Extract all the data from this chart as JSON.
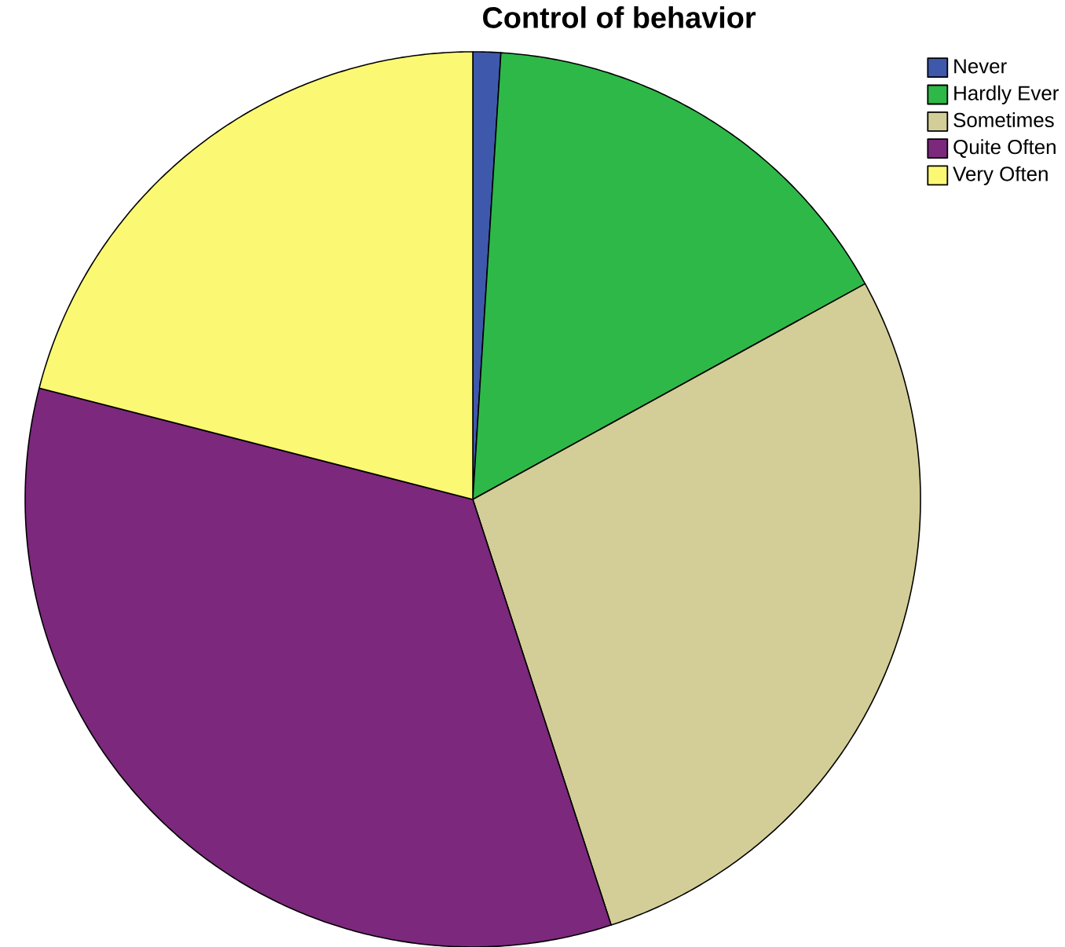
{
  "chart_data": {
    "type": "pie",
    "title": "Control of behavior",
    "categories": [
      "Never",
      "Hardly Ever",
      "Sometimes",
      "Quite Often",
      "Very Often"
    ],
    "values": [
      1,
      16,
      28,
      34,
      21
    ],
    "colors": [
      "#3e58ac",
      "#2eb848",
      "#d3ce97",
      "#7c287d",
      "#fbf873"
    ],
    "legend": "top right"
  }
}
